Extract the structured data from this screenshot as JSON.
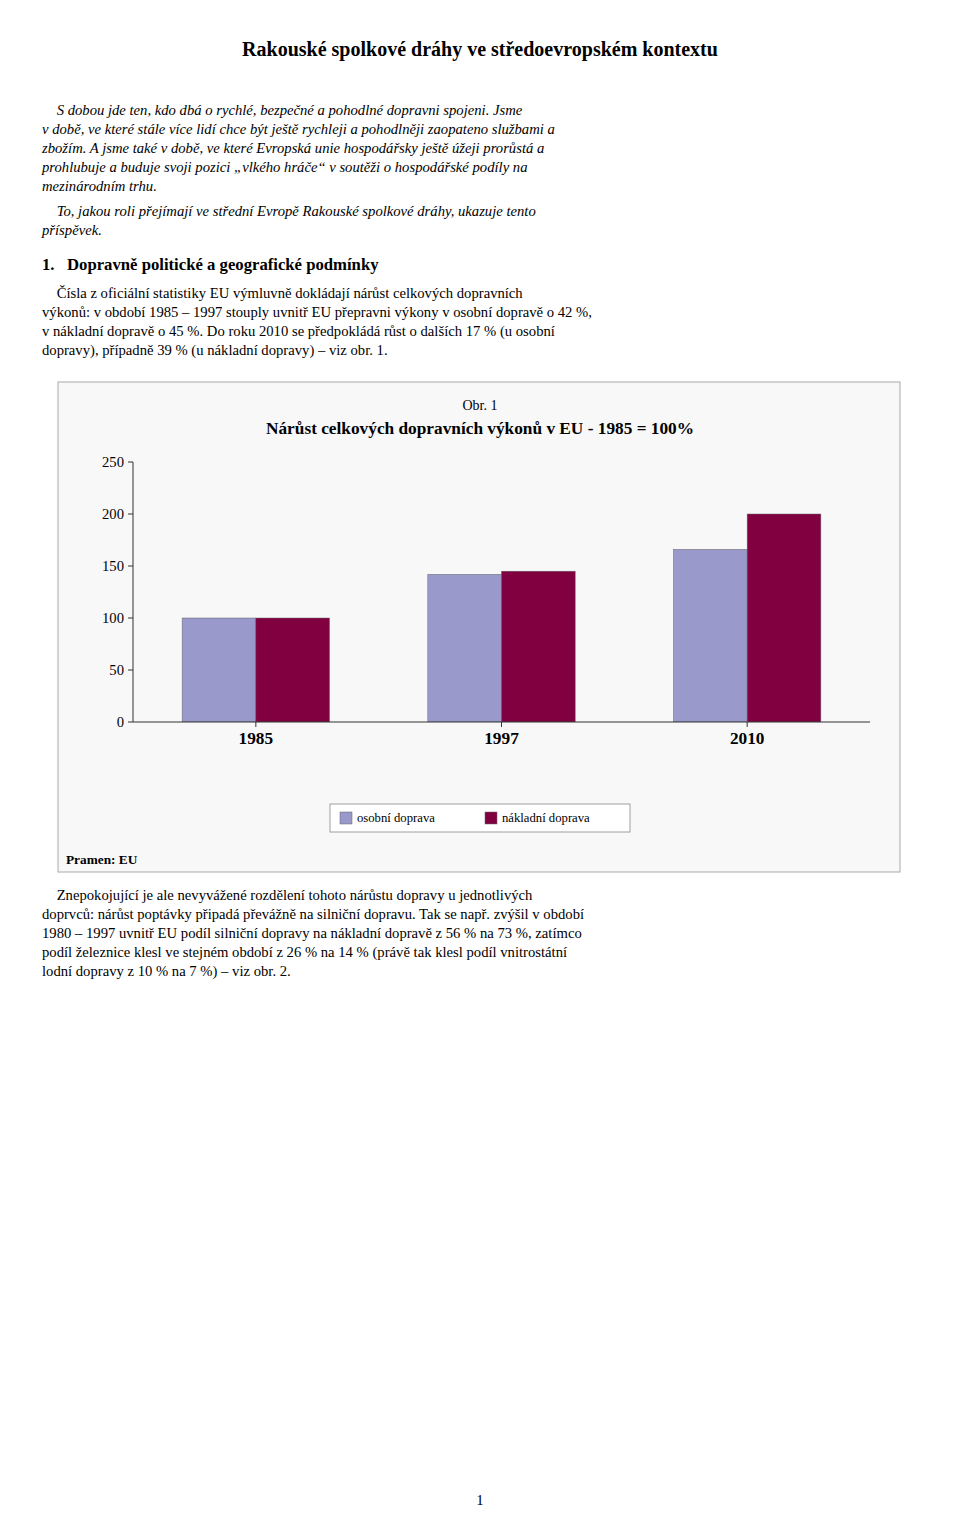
{
  "page_title": "Rakouské spolkové dráhy ve středoevropském kontextu",
  "para1_lines": [
    "    S dobou jde ten, kdo dbá o rychlé, bezpečné a pohodlné dopravni spojeni. Jsme",
    "v době, ve které stále více lidí chce být ještě rychleji a pohodlněji zaopateno službami a",
    "zbožím. A jsme také v době, ve které Evropská unie hospodářsky ještě úžeji prorůstá a",
    "prohlubuje a buduje svoji pozici „vlkého hráče“ v soutěži o hospodářské podíly na",
    "mezinárodním trhu."
  ],
  "para2_lines": [
    "    To, jakou roli přejímají ve střední Evropě Rakouské spolkové dráhy, ukazuje tento",
    "příspěvek."
  ],
  "section1_title": "1.   Dopravně politické a geografické podmínky",
  "para3_lines": [
    "    Čísla z oficiální statistiky EU výmluvně dokládají nárůst celkových dopravních",
    "výkonů: v období 1985 – 1997 stouply uvnitř EU přepravni výkony v osobní dopravě o 42 %,",
    "v nákladní dopravě o 45 %. Do roku 2010 se předpokládá růst o dalších 17 % (u osobní",
    "dopravy), případně 39 % (u nákladní dopravy) – viz obr. 1."
  ],
  "chart_data": {
    "type": "bar",
    "title": "Nárůst celkových dopravních výkonů v EU - 1985 = 100%",
    "annotations": [
      "Obr. 1",
      "Pramen: EU"
    ],
    "categories": [
      "1985",
      "1997",
      "2010"
    ],
    "series": [
      {
        "name": "osobní doprava",
        "color": "#9999CC",
        "values": [
          100,
          142,
          166
        ]
      },
      {
        "name": "nákladní doprava",
        "color": "#800040",
        "values": [
          100,
          145,
          200
        ]
      }
    ],
    "ylim": [
      0,
      250
    ],
    "yticks": [
      0,
      50,
      100,
      150,
      200,
      250
    ],
    "grid": false,
    "legend": "bottom"
  },
  "para4_lines": [
    "    Znepokojující je ale nevyvážené rozdělení tohoto nárůstu dopravy u jednotlivých",
    "doprvců: nárůst poptávky připadá převážně na silniční dopravu. Tak se např. zvýšil v období",
    "1980 – 1997 uvnitř EU podíl silniční dopravy na nákladní dopravě z 56 % na 73 %, zatímco",
    "podíl železnice klesl ve stejném období z 26 % na 14 % (právě tak klesl podíl vnitrostátní",
    "lodní dopravy z 10 % na 7 %) – viz obr. 2."
  ],
  "page_number": "1"
}
